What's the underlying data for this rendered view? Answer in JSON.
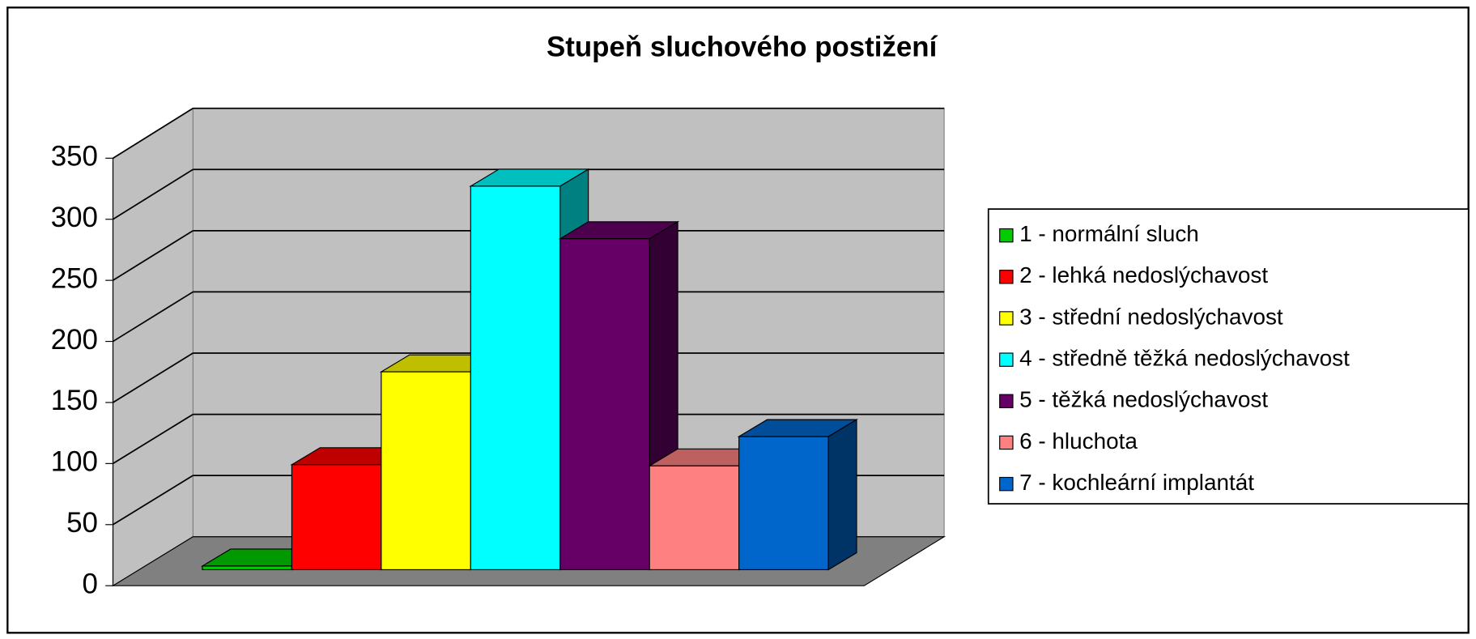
{
  "chart_data": {
    "type": "bar",
    "title": "Stupeň sluchového postižení",
    "series": [
      {
        "name": "1 - normální sluch",
        "color": "#00cc00",
        "values": [
          3
        ]
      },
      {
        "name": "2 - lehká nedoslýchavost",
        "color": "#ff0000",
        "values": [
          86
        ]
      },
      {
        "name": "3 - střední nedoslýchavost",
        "color": "#ffff00",
        "values": [
          162
        ]
      },
      {
        "name": "4 - středně těžká nedoslýchavost",
        "color": "#00ffff",
        "values": [
          314
        ]
      },
      {
        "name": "5 - těžká nedoslýchavost",
        "color": "#660066",
        "values": [
          271
        ]
      },
      {
        "name": "6 - hluchota",
        "color": "#ff8080",
        "values": [
          85
        ]
      },
      {
        "name": "7 - kochleární implantát",
        "color": "#0066cc",
        "values": [
          109
        ]
      }
    ],
    "ylim": [
      0,
      350
    ],
    "yticks": [
      0,
      50,
      100,
      150,
      200,
      250,
      300,
      350
    ],
    "grid": true,
    "legend": "right"
  }
}
